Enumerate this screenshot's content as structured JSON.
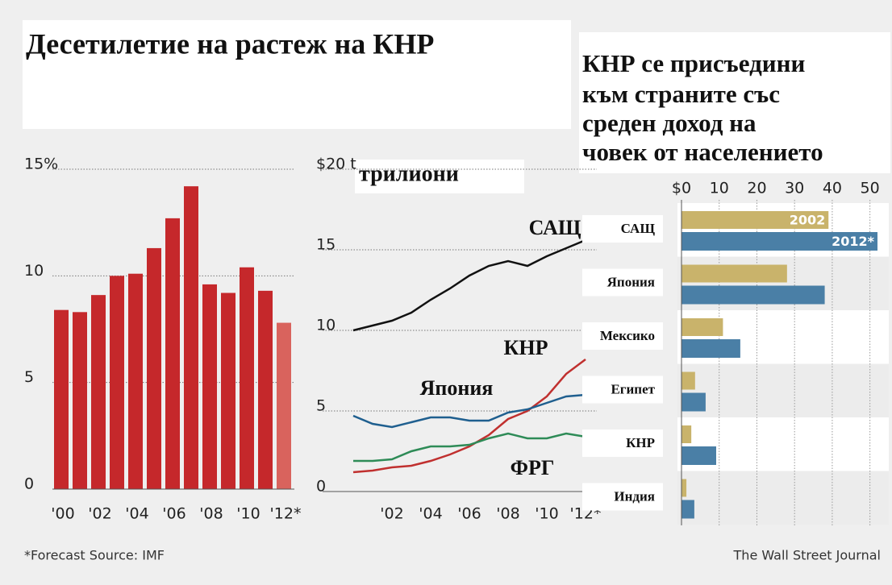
{
  "title": "Десетилетие на растеж на КНР",
  "footnote": "*Forecast  Source: IMF",
  "publisher": "The Wall Street Journal",
  "chart_data": [
    {
      "type": "bar",
      "categories": [
        "'00",
        null,
        "'02",
        null,
        "'04",
        null,
        "'06",
        null,
        "'08",
        null,
        "'10",
        null,
        "'12*"
      ],
      "values": [
        8.4,
        8.3,
        9.1,
        10.0,
        10.1,
        11.3,
        12.7,
        14.2,
        9.6,
        9.2,
        10.4,
        9.3,
        7.8
      ],
      "colors": [
        "#c5282b",
        "#c5282b",
        "#c5282b",
        "#c5282b",
        "#c5282b",
        "#c5282b",
        "#c5282b",
        "#c5282b",
        "#c5282b",
        "#c5282b",
        "#c5282b",
        "#c5282b",
        "#d9635d"
      ],
      "ylim": [
        0,
        15
      ],
      "yticks": [
        0,
        5,
        10,
        {
          "value": 15,
          "label": "15%"
        }
      ],
      "grid": true
    },
    {
      "type": "line",
      "title": "трилиони",
      "categories": [
        null,
        null,
        "'02",
        null,
        "'04",
        null,
        "'06",
        null,
        "'08",
        null,
        "'10",
        null,
        "'12*"
      ],
      "series": [
        {
          "name": "САЩ",
          "color": "#111111",
          "values": [
            10.0,
            10.3,
            10.6,
            11.1,
            11.9,
            12.6,
            13.4,
            14.0,
            14.3,
            14.0,
            14.6,
            15.1,
            15.6
          ]
        },
        {
          "name": "КНР",
          "color": "#c0302f",
          "values": [
            1.2,
            1.3,
            1.5,
            1.6,
            1.9,
            2.3,
            2.8,
            3.5,
            4.5,
            5.0,
            5.9,
            7.3,
            8.2
          ]
        },
        {
          "name": "Япония",
          "color": "#1f5f8f",
          "values": [
            4.7,
            4.2,
            4.0,
            4.3,
            4.6,
            4.6,
            4.4,
            4.4,
            4.9,
            5.1,
            5.5,
            5.9,
            6.0
          ]
        },
        {
          "name": "ФРГ",
          "color": "#2e8b57",
          "values": [
            1.9,
            1.9,
            2.0,
            2.5,
            2.8,
            2.8,
            2.9,
            3.3,
            3.6,
            3.3,
            3.3,
            3.6,
            3.4
          ]
        }
      ],
      "ylim": [
        0,
        20
      ],
      "yticks": [
        0,
        5,
        10,
        15,
        {
          "value": 20,
          "label": "$20 t"
        }
      ],
      "grid": true
    },
    {
      "type": "hbar",
      "title": [
        "КНР се присъедини",
        "към страните със",
        "среден доход на",
        "човек от населението"
      ],
      "categories": [
        "САЩ",
        "Япония",
        "Мексико",
        "Египет",
        "КНР",
        "Индия"
      ],
      "series": [
        {
          "name": "2002",
          "color": "#c9b36b",
          "values": [
            39,
            28,
            11,
            3.6,
            2.6,
            1.3
          ]
        },
        {
          "name": "2012*",
          "color": "#4a7fa6",
          "values": [
            52,
            38,
            15.6,
            6.4,
            9.2,
            3.4
          ]
        }
      ],
      "xlim": [
        0,
        53.5
      ],
      "xticks": [
        {
          "value": 0,
          "label": "$0"
        },
        10,
        20,
        30,
        40,
        50
      ],
      "grid": true
    }
  ]
}
